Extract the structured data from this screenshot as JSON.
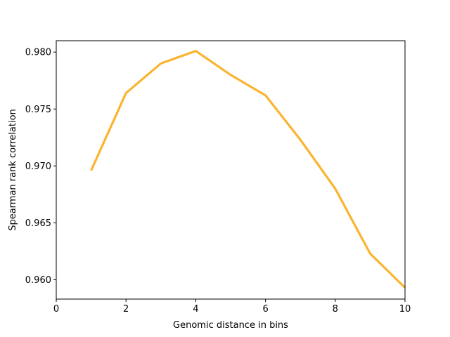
{
  "chart_data": {
    "type": "line",
    "title": "",
    "xlabel": "Genomic distance in bins",
    "ylabel": "Spearman rank correlation",
    "xlim": [
      0,
      10
    ],
    "ylim": [
      0.9583,
      0.981
    ],
    "xticks": [
      0,
      2,
      4,
      6,
      8,
      10
    ],
    "xtick_labels": [
      "0",
      "2",
      "4",
      "6",
      "8",
      "10"
    ],
    "yticks": [
      0.96,
      0.965,
      0.97,
      0.975,
      0.98
    ],
    "ytick_labels": [
      "0.960",
      "0.965",
      "0.970",
      "0.975",
      "0.980"
    ],
    "grid": false,
    "series": [
      {
        "color": "#fbb430",
        "x": [
          1,
          2,
          3,
          4,
          5,
          6,
          7,
          8,
          9,
          10
        ],
        "y": [
          0.9696,
          0.9764,
          0.979,
          0.9801,
          0.978,
          0.9762,
          0.9723,
          0.968,
          0.9623,
          0.9593
        ]
      }
    ]
  }
}
